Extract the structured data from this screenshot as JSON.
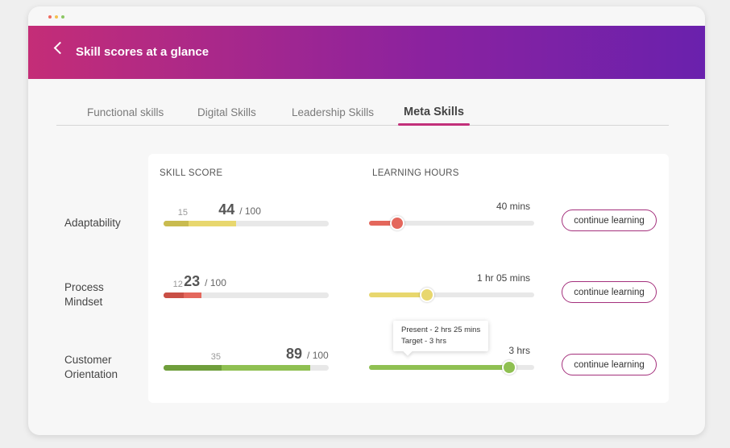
{
  "header": {
    "title": "Skill scores at a glance"
  },
  "tabs": [
    {
      "label": "Functional skills",
      "active": false
    },
    {
      "label": "Digital Skills",
      "active": false
    },
    {
      "label": "Leadership Skills",
      "active": false
    },
    {
      "label": "Meta Skills",
      "active": true
    }
  ],
  "table": {
    "headers": {
      "skill_score": "SKILL SCORE",
      "learning_hours": "LEARNING HOURS"
    },
    "rows": [
      {
        "skill": "Adaptability",
        "previous_score": 15,
        "score": 44,
        "total": {
          "value": 100,
          "label": "/ 100"
        },
        "score_color": "#e8d76e",
        "previous_color": "#c9bb4f",
        "learning_time": "40 mins",
        "learning_progress": 17,
        "learning_color": "#e4675c",
        "action": "continue learning"
      },
      {
        "skill": "Process Mindset",
        "previous_score": 12,
        "score": 23,
        "total": {
          "value": 100,
          "label": "/ 100"
        },
        "score_color": "#e4675c",
        "previous_color": "#c94f45",
        "learning_time": "1 hr 05 mins",
        "learning_progress": 35,
        "learning_color": "#e8d76e",
        "action": "continue learning"
      },
      {
        "skill": "Customer Orientation",
        "previous_score": 35,
        "score": 89,
        "total": {
          "value": 100,
          "label": "/ 100"
        },
        "score_color": "#8fc052",
        "previous_color": "#6f9e3b",
        "learning_time": "3 hrs",
        "learning_progress": 85,
        "learning_color": "#8fc052",
        "action": "continue learning",
        "tooltip": [
          "Present - 2 hrs 25 mins",
          "Target - 3 hrs"
        ]
      }
    ]
  }
}
